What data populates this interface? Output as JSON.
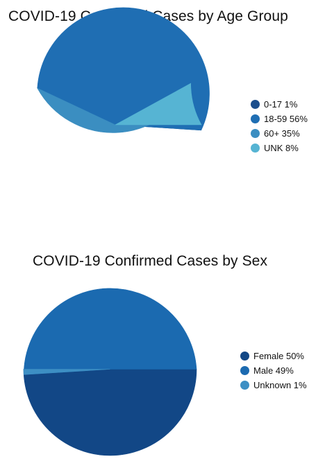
{
  "chart_data": [
    {
      "type": "pie",
      "title": "COVID-19 Confirmed Cases by Age Group",
      "slices": [
        {
          "label": "0-17",
          "value": 1,
          "legend": "0-17 1%",
          "color": "#1c4f8d"
        },
        {
          "label": "18-59",
          "value": 56,
          "legend": "18-59 56%",
          "color": "#1f6eb3"
        },
        {
          "label": "60+",
          "value": 35,
          "legend": "60+ 35%",
          "color": "#3b8ec1"
        },
        {
          "label": "UNK",
          "value": 8,
          "legend": "UNK 8%",
          "color": "#56b4d3"
        }
      ],
      "legend_position": "right"
    },
    {
      "type": "pie",
      "title": "COVID-19 Confirmed Cases by Sex",
      "slices": [
        {
          "label": "Female",
          "value": 50,
          "legend": "Female 50%",
          "color": "#124786"
        },
        {
          "label": "Male",
          "value": 49,
          "legend": "Male 49%",
          "color": "#1b6ab0"
        },
        {
          "label": "Unknown",
          "value": 1,
          "legend": "Unknown 1%",
          "color": "#3d8fc4"
        }
      ],
      "legend_position": "right"
    }
  ]
}
